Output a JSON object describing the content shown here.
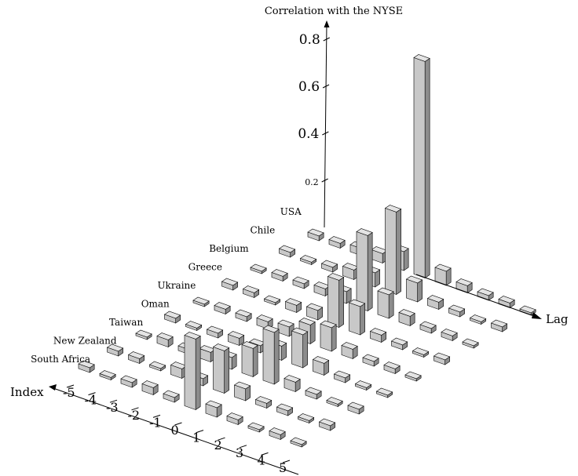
{
  "chart_data": {
    "type": "bar",
    "subtype": "3d-bar",
    "title": "",
    "zlabel": "Correlation with the NYSE",
    "xlabel": "Lag",
    "ylabel": "Index",
    "lags": [
      -5,
      -4,
      -3,
      -2,
      -1,
      0,
      1,
      2,
      3,
      4,
      5
    ],
    "z_ticks": [
      "0.2",
      "0.4",
      "0.6",
      "0.8"
    ],
    "zlim": [
      0,
      0.9
    ],
    "index_labels": [
      "South Africa",
      "New Zealand",
      "Taiwan",
      "Oman",
      "Ukraine",
      "Greece",
      "Belgium",
      "Chile",
      "USA"
    ],
    "series": [
      {
        "name": "South Africa",
        "values": [
          0.02,
          0.01,
          0.02,
          0.03,
          0.02,
          0.3,
          0.04,
          0.02,
          0.01,
          0.02,
          0.01
        ]
      },
      {
        "name": "New Zealand",
        "values": [
          0.02,
          0.02,
          0.01,
          0.04,
          0.03,
          0.18,
          0.05,
          0.02,
          0.02,
          0.01,
          0.02
        ]
      },
      {
        "name": "Taiwan",
        "values": [
          0.01,
          0.03,
          0.02,
          0.04,
          0.05,
          0.12,
          0.22,
          0.04,
          0.02,
          0.01,
          0.02
        ]
      },
      {
        "name": "Oman",
        "values": [
          0.02,
          0.01,
          0.02,
          0.03,
          0.03,
          0.06,
          0.14,
          0.05,
          0.02,
          0.01,
          0.01
        ]
      },
      {
        "name": "Ukraine",
        "values": [
          0.01,
          0.02,
          0.02,
          0.03,
          0.04,
          0.08,
          0.1,
          0.04,
          0.02,
          0.02,
          0.01
        ]
      },
      {
        "name": "Greece",
        "values": [
          0.02,
          0.02,
          0.01,
          0.03,
          0.04,
          0.2,
          0.12,
          0.03,
          0.02,
          0.01,
          0.02
        ]
      },
      {
        "name": "Belgium",
        "values": [
          0.01,
          0.02,
          0.02,
          0.03,
          0.05,
          0.32,
          0.1,
          0.04,
          0.02,
          0.02,
          0.01
        ]
      },
      {
        "name": "Chile",
        "values": [
          0.02,
          0.01,
          0.02,
          0.04,
          0.06,
          0.35,
          0.08,
          0.03,
          0.02,
          0.01,
          0.02
        ]
      },
      {
        "name": "USA",
        "values": [
          0.02,
          0.02,
          0.03,
          0.04,
          0.08,
          0.92,
          0.06,
          0.03,
          0.02,
          0.02,
          0.01
        ]
      }
    ],
    "colors": {
      "bar_fill": "#c8c8c8",
      "bar_side": "#8c8c8c",
      "bar_top": "#e4e4e4",
      "stroke": "#000000"
    }
  }
}
